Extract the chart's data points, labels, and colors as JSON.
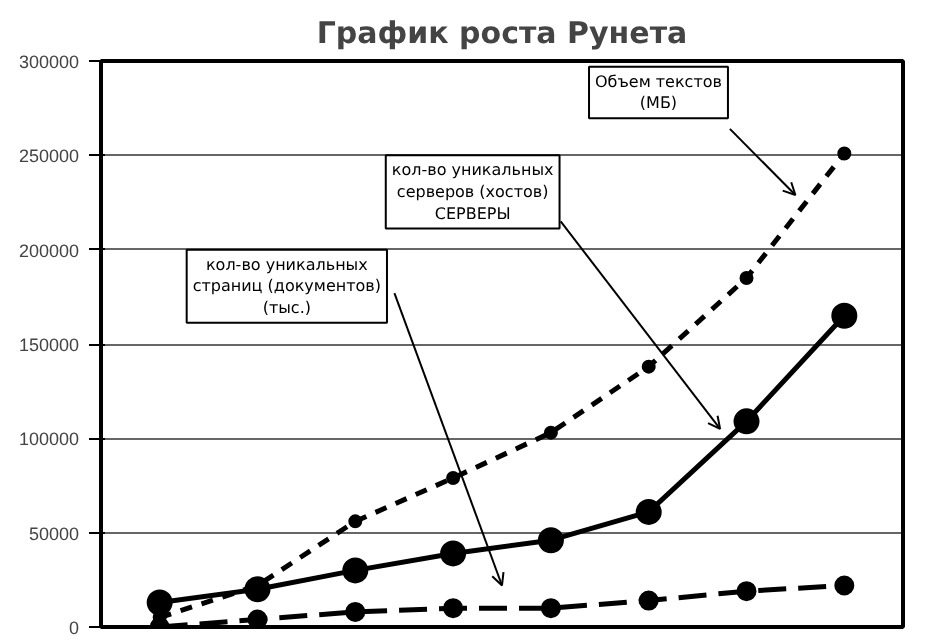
{
  "chart_data": {
    "type": "line",
    "title": "График роста Рунета",
    "categories": [
      null,
      null,
      null,
      null,
      null,
      null,
      null,
      null
    ],
    "series": [
      {
        "name": "кол-во уникальных\nсерверов (хостов)\nСЕРВЕРЫ",
        "color": "#000000",
        "line_style": "solid",
        "values": [
          13000,
          20000,
          30000,
          39000,
          46000,
          61000,
          109000,
          165000
        ]
      },
      {
        "name": "кол-во уникальных\nстраниц (документов)\n(тыс.)",
        "color": "#000000",
        "line_style": "dashed",
        "values": [
          0,
          4000,
          8000,
          10000,
          10000,
          14000,
          19000,
          22000
        ]
      },
      {
        "name": "Объем текстов\n(МБ)",
        "color": "#000000",
        "line_style": "dotted",
        "values": [
          5000,
          22000,
          56000,
          79000,
          103000,
          138000,
          185000,
          251000
        ]
      }
    ],
    "ylim": [
      0,
      300000
    ],
    "yticks": [
      0,
      50000,
      100000,
      150000,
      200000,
      250000,
      300000
    ],
    "grid": "y",
    "legend": false,
    "marker": "circle"
  }
}
